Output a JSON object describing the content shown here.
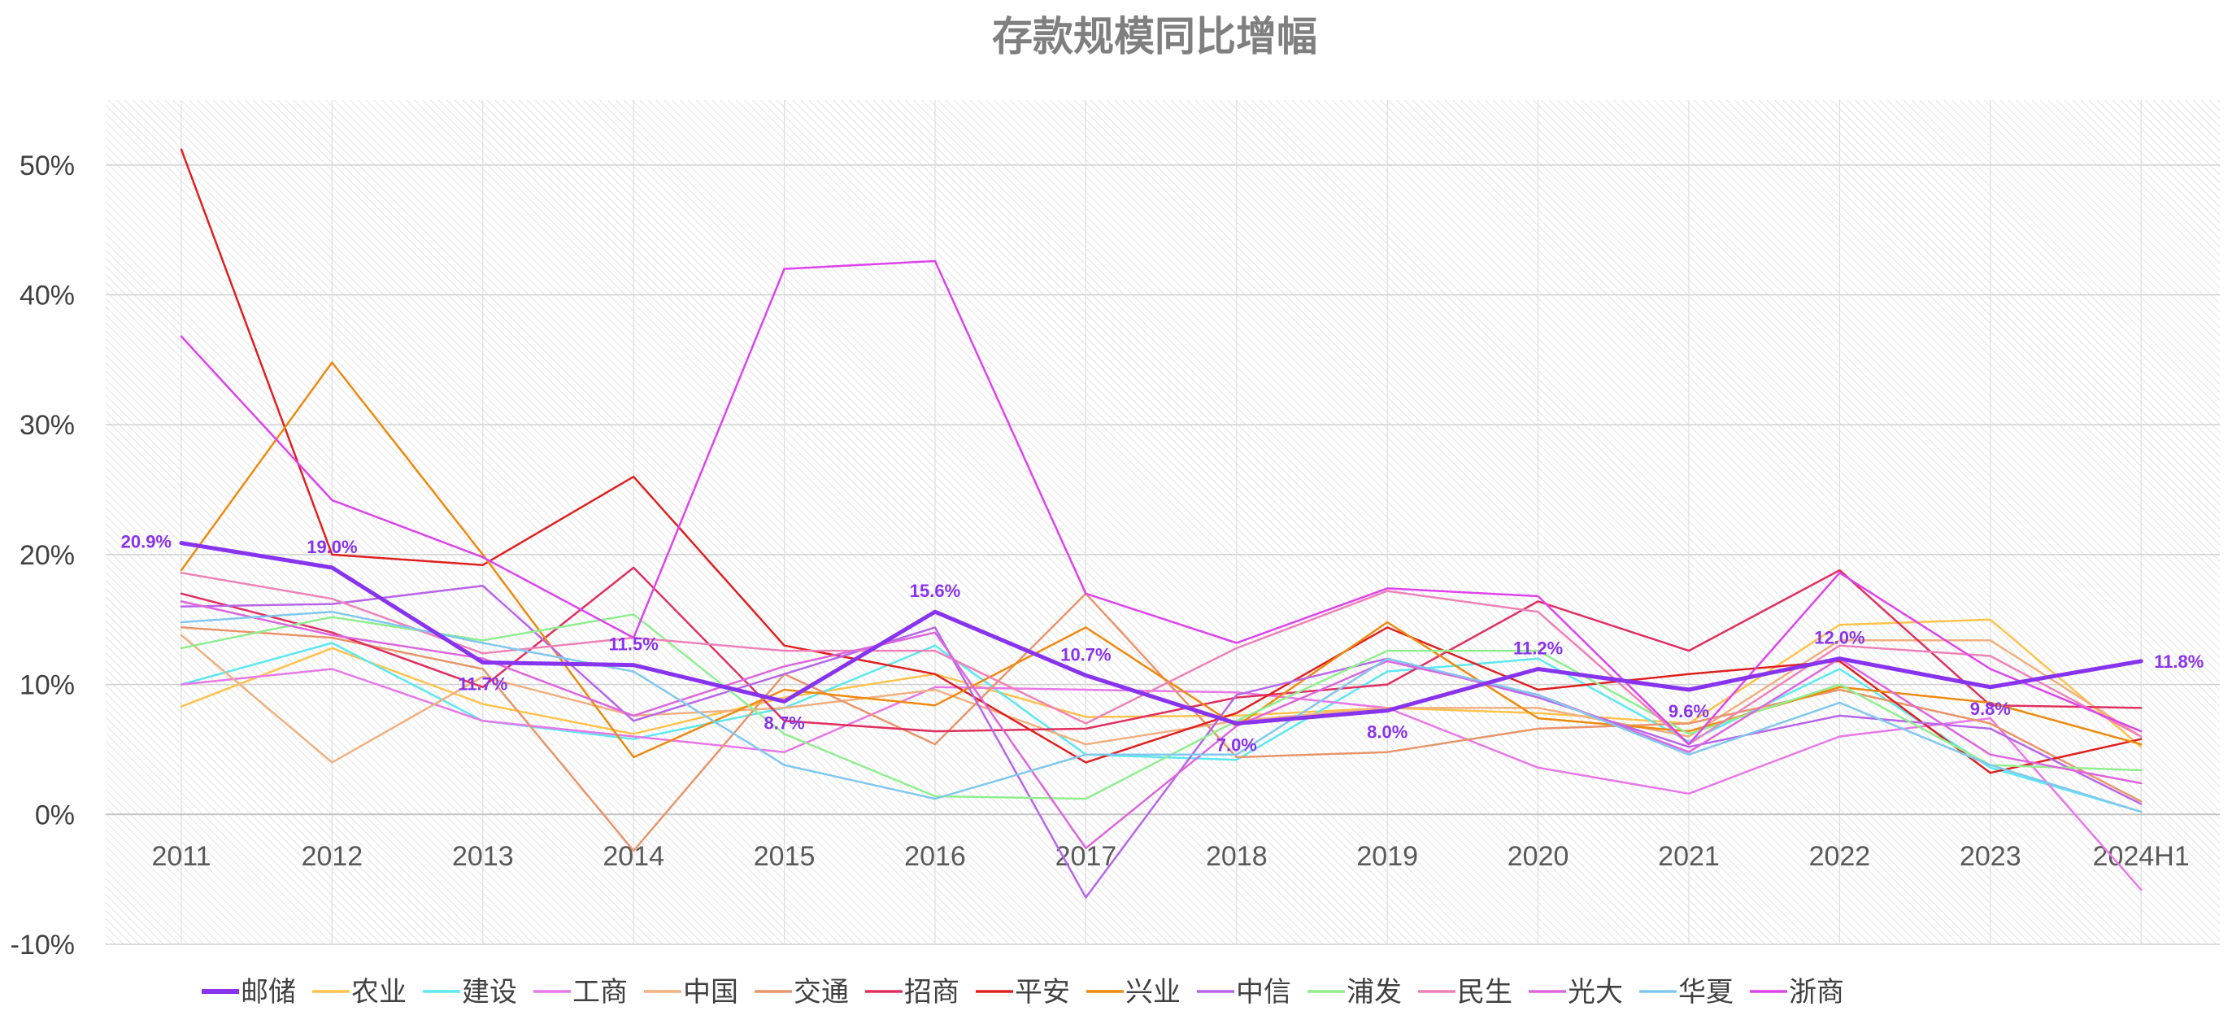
{
  "chart_data": {
    "type": "line",
    "title": "存款规模同比增幅",
    "categories": [
      "2011",
      "2012",
      "2013",
      "2014",
      "2015",
      "2016",
      "2017",
      "2018",
      "2019",
      "2020",
      "2021",
      "2022",
      "2023",
      "2024H1"
    ],
    "ylim": [
      -10,
      55
    ],
    "yticks": [
      -10,
      0,
      10,
      20,
      30,
      40,
      50
    ],
    "ytick_labels": [
      "-10%",
      "0%",
      "10%",
      "20%",
      "30%",
      "40%",
      "50%"
    ],
    "grid": true,
    "legend_position": "bottom",
    "series": [
      {
        "name": "邮储",
        "color": "#8833ee",
        "width": 5,
        "values": [
          20.9,
          19.0,
          11.7,
          11.5,
          8.7,
          15.6,
          10.7,
          7.0,
          8.0,
          11.2,
          9.6,
          12.0,
          9.8,
          11.8
        ],
        "labels": [
          "20.9%",
          "19.0%",
          "11.7%",
          "11.5%",
          "8.7%",
          "15.6%",
          "10.7%",
          "7.0%",
          "8.0%",
          "11.2%",
          "9.6%",
          "12.0%",
          "9.8%",
          "11.8%"
        ]
      },
      {
        "name": "农业",
        "color": "#ffc34d",
        "width": 2.5,
        "values": [
          8.3,
          12.8,
          8.5,
          6.2,
          9.0,
          10.8,
          7.5,
          7.6,
          8.2,
          7.8,
          7.0,
          14.6,
          15.0,
          5.2
        ]
      },
      {
        "name": "建设",
        "color": "#5ce8f0",
        "width": 2.5,
        "values": [
          10.0,
          13.2,
          7.2,
          5.8,
          8.2,
          13.0,
          4.6,
          4.2,
          11.0,
          12.0,
          5.6,
          11.2,
          3.6,
          0.2
        ]
      },
      {
        "name": "工商",
        "color": "#e878e8",
        "width": 2.5,
        "values": [
          10.0,
          11.2,
          7.2,
          6.0,
          4.8,
          9.8,
          9.6,
          9.4,
          8.2,
          3.6,
          1.6,
          6.0,
          7.4,
          -5.8
        ]
      },
      {
        "name": "中国",
        "color": "#f0b080",
        "width": 2.5,
        "values": [
          13.8,
          4.0,
          10.6,
          7.6,
          8.2,
          9.6,
          5.4,
          7.2,
          8.2,
          8.2,
          6.0,
          13.4,
          13.4,
          6.0
        ]
      },
      {
        "name": "交通",
        "color": "#e8956b",
        "width": 2.5,
        "values": [
          14.4,
          13.6,
          11.2,
          -2.8,
          10.8,
          5.4,
          17.0,
          4.4,
          4.8,
          6.6,
          7.0,
          9.6,
          7.0,
          1.0
        ]
      },
      {
        "name": "招商",
        "color": "#e03060",
        "width": 2.5,
        "values": [
          17.0,
          14.0,
          9.8,
          19.0,
          7.2,
          6.4,
          6.6,
          9.0,
          10.0,
          16.4,
          12.6,
          18.8,
          8.4,
          8.2
        ]
      },
      {
        "name": "平安",
        "color": "#e02020",
        "width": 2.5,
        "values": [
          51.2,
          20.0,
          19.2,
          26.0,
          13.0,
          10.8,
          4.0,
          7.8,
          14.4,
          9.6,
          10.8,
          11.8,
          3.2,
          5.8
        ]
      },
      {
        "name": "兴业",
        "color": "#ee8a10",
        "width": 2.5,
        "values": [
          18.8,
          34.8,
          20.0,
          4.4,
          9.6,
          8.4,
          14.4,
          6.8,
          14.8,
          7.4,
          6.4,
          9.8,
          8.6,
          5.4
        ]
      },
      {
        "name": "中信",
        "color": "#b866e8",
        "width": 2.5,
        "values": [
          16.0,
          16.2,
          17.6,
          7.2,
          10.8,
          14.4,
          -6.4,
          9.2,
          12.0,
          9.0,
          5.2,
          7.6,
          6.6,
          0.8
        ]
      },
      {
        "name": "浦发",
        "color": "#90ee90",
        "width": 2.5,
        "values": [
          12.8,
          15.2,
          13.4,
          15.4,
          6.2,
          1.4,
          1.2,
          7.2,
          12.6,
          12.6,
          6.2,
          10.0,
          3.8,
          3.4
        ]
      },
      {
        "name": "民生",
        "color": "#ee82b8",
        "width": 2.5,
        "values": [
          18.6,
          16.6,
          12.4,
          13.6,
          12.6,
          12.6,
          7.0,
          12.8,
          17.2,
          15.6,
          5.4,
          13.0,
          12.2,
          6.0
        ]
      },
      {
        "name": "光大",
        "color": "#dd66dd",
        "width": 2.5,
        "values": [
          16.4,
          13.8,
          12.0,
          7.6,
          11.4,
          14.0,
          -2.6,
          6.8,
          11.8,
          9.2,
          4.8,
          12.0,
          4.6,
          2.4
        ]
      },
      {
        "name": "华夏",
        "color": "#80c8ee",
        "width": 2.5,
        "values": [
          14.8,
          15.6,
          13.2,
          11.0,
          3.8,
          1.2,
          4.6,
          4.6,
          12.0,
          9.2,
          4.6,
          8.6,
          3.8,
          0.2
        ]
      },
      {
        "name": "浙商",
        "color": "#dd44ee",
        "width": 2.5,
        "values": [
          36.8,
          24.2,
          19.8,
          13.6,
          42.0,
          42.6,
          17.0,
          13.2,
          17.4,
          16.8,
          5.4,
          18.6,
          11.2,
          6.4
        ]
      }
    ]
  }
}
